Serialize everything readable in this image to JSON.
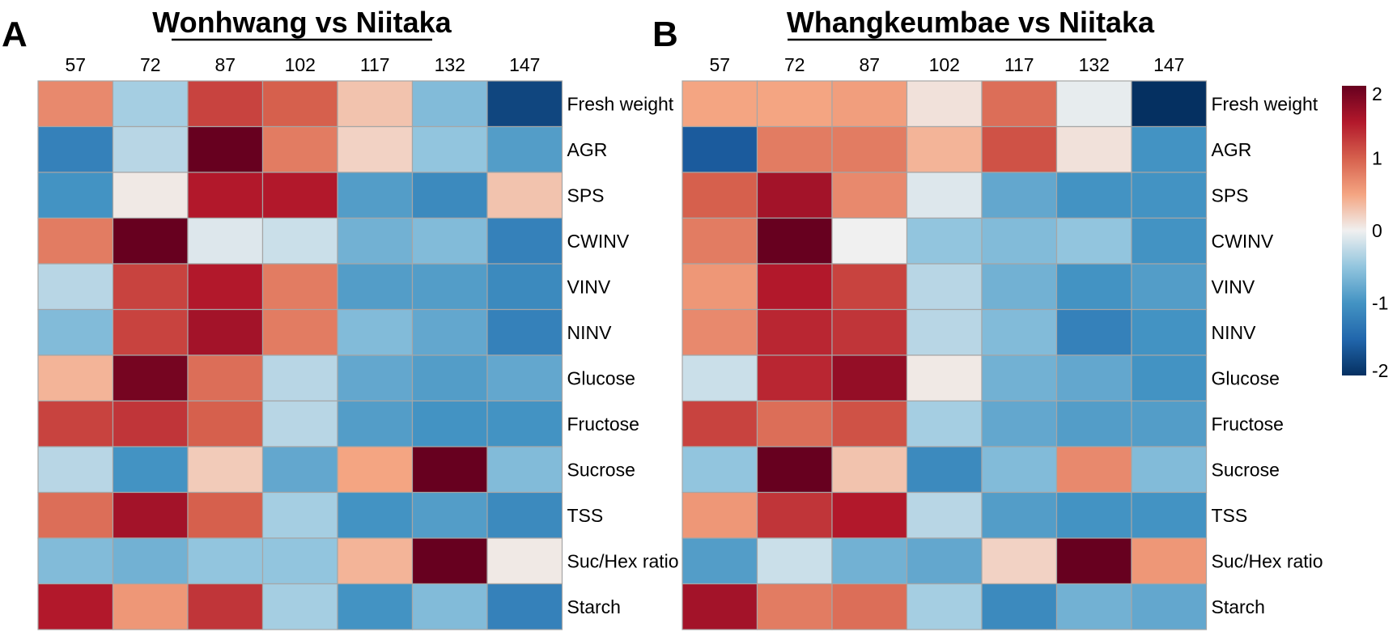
{
  "colors": {
    "low": "#053061",
    "mid": "#f0f0f0",
    "high": "#67001f"
  },
  "chart_data": [
    {
      "type": "heatmap",
      "panel": "A",
      "title": "Wonhwang vs Niitaka",
      "columns": [
        "57",
        "72",
        "87",
        "102",
        "117",
        "132",
        "147"
      ],
      "rows": [
        "Fresh weight",
        "AGR",
        "SPS",
        "CWINV",
        "VINV",
        "NINV",
        "Glucose",
        "Fructose",
        "Sucrose",
        "TSS",
        "Suc/Hex ratio",
        "Starch"
      ],
      "values": [
        [
          0.7,
          -0.4,
          1.2,
          1.0,
          0.3,
          -0.6,
          -1.8
        ],
        [
          -1.2,
          -0.3,
          2.0,
          0.8,
          0.2,
          -0.5,
          -0.9
        ],
        [
          -1.0,
          0.05,
          1.5,
          1.5,
          -0.9,
          -1.1,
          0.3
        ],
        [
          0.8,
          2.1,
          -0.1,
          -0.2,
          -0.7,
          -0.6,
          -1.2
        ],
        [
          -0.3,
          1.2,
          1.5,
          0.8,
          -0.9,
          -0.9,
          -1.1
        ],
        [
          -0.6,
          1.2,
          1.6,
          0.8,
          -0.6,
          -0.8,
          -1.2
        ],
        [
          0.4,
          1.9,
          0.9,
          -0.3,
          -0.8,
          -0.9,
          -0.8
        ],
        [
          1.2,
          1.3,
          1.0,
          -0.3,
          -0.9,
          -1.0,
          -1.0
        ],
        [
          -0.3,
          -1.0,
          0.25,
          -0.8,
          0.5,
          2.2,
          -0.6
        ],
        [
          0.9,
          1.6,
          1.0,
          -0.4,
          -1.0,
          -0.9,
          -1.1
        ],
        [
          -0.6,
          -0.7,
          -0.5,
          -0.5,
          0.4,
          2.4,
          0.05
        ],
        [
          1.5,
          0.6,
          1.3,
          -0.4,
          -1.0,
          -0.6,
          -1.2
        ]
      ],
      "range": [
        -2,
        2
      ]
    },
    {
      "type": "heatmap",
      "panel": "B",
      "title": "Whangkeumbae vs Niitaka",
      "columns": [
        "57",
        "72",
        "87",
        "102",
        "117",
        "132",
        "147"
      ],
      "rows": [
        "Fresh weight",
        "AGR",
        "SPS",
        "CWINV",
        "VINV",
        "NINV",
        "Glucose",
        "Fructose",
        "Sucrose",
        "TSS",
        "Suc/Hex ratio",
        "Starch"
      ],
      "values": [
        [
          0.5,
          0.5,
          0.55,
          0.1,
          0.9,
          -0.05,
          -2.4
        ],
        [
          -1.6,
          0.8,
          0.8,
          0.4,
          1.1,
          0.1,
          -1.0
        ],
        [
          1.0,
          1.6,
          0.7,
          -0.1,
          -0.8,
          -1.0,
          -1.0
        ],
        [
          0.8,
          2.2,
          0.0,
          -0.5,
          -0.6,
          -0.5,
          -1.0
        ],
        [
          0.6,
          1.5,
          1.2,
          -0.3,
          -0.7,
          -1.0,
          -0.9
        ],
        [
          0.7,
          1.4,
          1.3,
          -0.3,
          -0.6,
          -1.2,
          -1.0
        ],
        [
          -0.2,
          1.4,
          1.7,
          0.05,
          -0.7,
          -0.8,
          -1.0
        ],
        [
          1.2,
          0.9,
          1.1,
          -0.4,
          -0.8,
          -0.9,
          -0.9
        ],
        [
          -0.5,
          2.1,
          0.3,
          -1.1,
          -0.6,
          0.7,
          -0.6
        ],
        [
          0.6,
          1.3,
          1.5,
          -0.3,
          -0.9,
          -1.0,
          -1.0
        ],
        [
          -0.9,
          -0.2,
          -0.7,
          -0.8,
          0.2,
          2.0,
          0.6
        ],
        [
          1.6,
          0.8,
          0.9,
          -0.4,
          -1.1,
          -0.7,
          -0.8
        ]
      ],
      "range": [
        -2,
        2
      ]
    }
  ],
  "colorbar": {
    "ticks": [
      "2",
      "1",
      "0",
      "-1",
      "-2"
    ],
    "range": [
      -2,
      2
    ]
  }
}
